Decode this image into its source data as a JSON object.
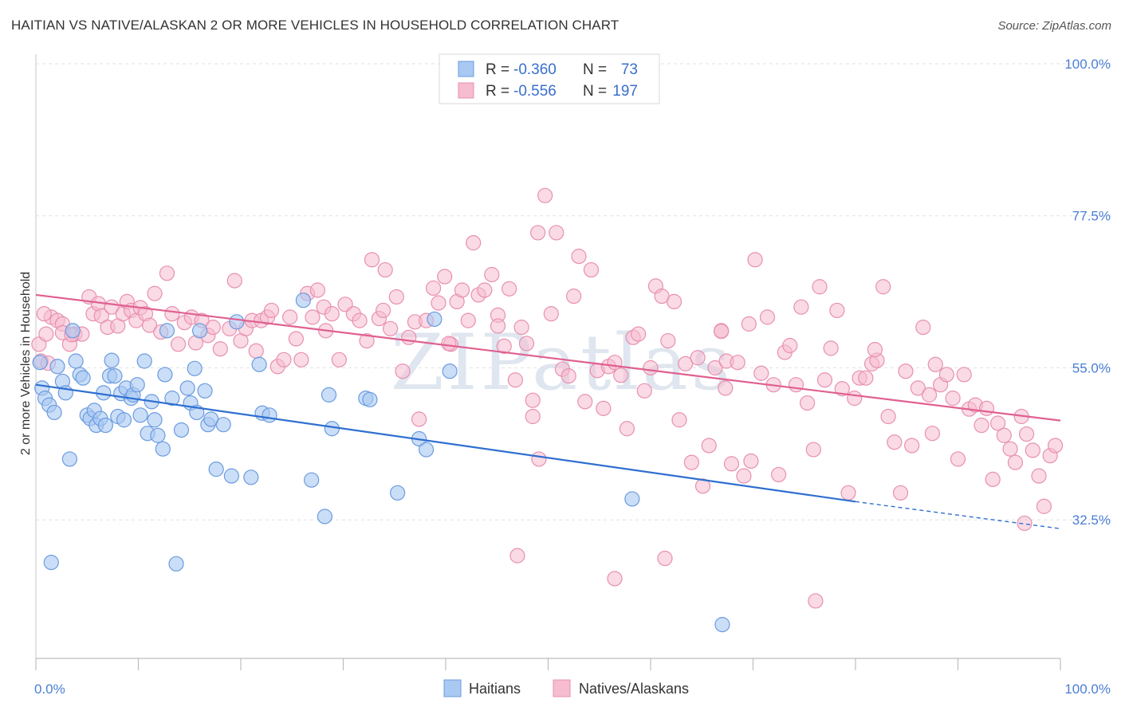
{
  "title": "HAITIAN VS NATIVE/ALASKAN 2 OR MORE VEHICLES IN HOUSEHOLD CORRELATION CHART",
  "source": "Source: ZipAtlas.com",
  "watermark": "ZIPatlas",
  "colors": {
    "blue_fill": "#a9c8f2",
    "blue_stroke": "#6a9be0",
    "blue_line": "#2f6fd0",
    "pink_fill": "#f6bcd0",
    "pink_stroke": "#e890b0",
    "pink_line": "#e06090",
    "tick_text": "#4a7fd4",
    "grid": "#e2e2e2"
  },
  "legend": {
    "rows": [
      {
        "r_label": "R =",
        "r_value": "-0.360",
        "n_label": "N =",
        "n_value": "73"
      },
      {
        "r_label": "R =",
        "r_value": "-0.556",
        "n_label": "N =",
        "n_value": "197"
      }
    ]
  },
  "chart_data": {
    "type": "scatter",
    "title": "HAITIAN VS NATIVE/ALASKAN 2 OR MORE VEHICLES IN HOUSEHOLD CORRELATION CHART",
    "xlabel": "",
    "ylabel": "2 or more Vehicles in Household",
    "xlim": [
      0,
      100
    ],
    "ylim": [
      12,
      100
    ],
    "x_tick_labels": [
      "0.0%",
      "100.0%"
    ],
    "y_tick_labels": [
      "100.0%",
      "77.5%",
      "55.0%",
      "32.5%"
    ],
    "y_ticks": [
      100,
      77.5,
      55,
      32.5
    ],
    "grid": true,
    "legend_position": "top-center",
    "series": [
      {
        "name": "Haitians",
        "trend": {
          "x0": 0,
          "y0": 52.5,
          "x1": 80,
          "y1": 35.2,
          "dash_to_x": 100,
          "dash_to_y": 31.2
        },
        "points": [
          [
            0.4,
            55.8
          ],
          [
            0.6,
            52
          ],
          [
            0.9,
            50.5
          ],
          [
            1.3,
            49.5
          ],
          [
            1.8,
            48.4
          ],
          [
            2.1,
            55.2
          ],
          [
            2.6,
            53
          ],
          [
            2.9,
            51.3
          ],
          [
            3.3,
            41.5
          ],
          [
            3.6,
            60.5
          ],
          [
            3.9,
            56
          ],
          [
            4.3,
            54
          ],
          [
            4.6,
            53.5
          ],
          [
            5.0,
            48
          ],
          [
            5.3,
            47.5
          ],
          [
            5.7,
            48.7
          ],
          [
            5.9,
            46.5
          ],
          [
            6.3,
            47.5
          ],
          [
            6.6,
            51.3
          ],
          [
            6.8,
            46.5
          ],
          [
            7.2,
            53.8
          ],
          [
            7.4,
            56.1
          ],
          [
            7.7,
            53.8
          ],
          [
            8.0,
            47.8
          ],
          [
            8.3,
            51.2
          ],
          [
            8.6,
            47.3
          ],
          [
            8.8,
            52
          ],
          [
            9.3,
            50.5
          ],
          [
            9.5,
            51
          ],
          [
            9.9,
            52.5
          ],
          [
            10.2,
            48
          ],
          [
            10.6,
            56
          ],
          [
            10.9,
            45.3
          ],
          [
            11.3,
            50
          ],
          [
            11.6,
            47.3
          ],
          [
            11.9,
            45
          ],
          [
            12.4,
            43
          ],
          [
            12.6,
            54
          ],
          [
            12.8,
            60.5
          ],
          [
            13.3,
            50.5
          ],
          [
            13.7,
            26
          ],
          [
            14.2,
            45.8
          ],
          [
            14.8,
            52
          ],
          [
            15.1,
            49.8
          ],
          [
            15.5,
            54.9
          ],
          [
            15.7,
            48.4
          ],
          [
            16.0,
            60.5
          ],
          [
            16.5,
            51.6
          ],
          [
            16.8,
            46.6
          ],
          [
            17.1,
            47.4
          ],
          [
            17.6,
            40
          ],
          [
            18.3,
            46.6
          ],
          [
            19.1,
            39
          ],
          [
            19.6,
            61.8
          ],
          [
            21.0,
            38.8
          ],
          [
            21.8,
            55.5
          ],
          [
            22.1,
            48.3
          ],
          [
            22.8,
            48
          ],
          [
            26.1,
            65
          ],
          [
            26.9,
            38.4
          ],
          [
            28.2,
            33
          ],
          [
            28.6,
            51
          ],
          [
            28.9,
            46
          ],
          [
            32.2,
            50.5
          ],
          [
            32.6,
            50.3
          ],
          [
            35.3,
            36.5
          ],
          [
            37.4,
            44.5
          ],
          [
            38.1,
            42.9
          ],
          [
            38.9,
            62.2
          ],
          [
            40.4,
            54.5
          ],
          [
            58.2,
            35.6
          ],
          [
            67.0,
            17
          ],
          [
            1.5,
            26.2
          ]
        ]
      },
      {
        "name": "Natives/Alaskans",
        "trend": {
          "x0": 0,
          "y0": 65.8,
          "x1": 100,
          "y1": 47.2
        },
        "points": [
          [
            0.3,
            58.5
          ],
          [
            0.5,
            56
          ],
          [
            1.0,
            60
          ],
          [
            1.5,
            62.5
          ],
          [
            2.1,
            62
          ],
          [
            2.6,
            61.5
          ],
          [
            3.3,
            58.5
          ],
          [
            3.8,
            60
          ],
          [
            4.5,
            60
          ],
          [
            5.2,
            65.5
          ],
          [
            5.6,
            63
          ],
          [
            6.1,
            64.5
          ],
          [
            6.4,
            62.7
          ],
          [
            7.0,
            61
          ],
          [
            7.4,
            64
          ],
          [
            8.0,
            61.2
          ],
          [
            8.5,
            63
          ],
          [
            8.9,
            64.8
          ],
          [
            9.3,
            63.5
          ],
          [
            9.8,
            62
          ],
          [
            10.2,
            63.9
          ],
          [
            10.7,
            63
          ],
          [
            11.1,
            61.3
          ],
          [
            11.6,
            66
          ],
          [
            12.2,
            60.3
          ],
          [
            12.8,
            69
          ],
          [
            13.3,
            63
          ],
          [
            13.9,
            58.5
          ],
          [
            14.5,
            61.7
          ],
          [
            15.2,
            62.5
          ],
          [
            15.6,
            58.7
          ],
          [
            16.2,
            62
          ],
          [
            16.8,
            59.8
          ],
          [
            17.3,
            61
          ],
          [
            18.0,
            57.8
          ],
          [
            18.9,
            60.8
          ],
          [
            19.4,
            67.9
          ],
          [
            20.0,
            59
          ],
          [
            20.5,
            60.8
          ],
          [
            21.1,
            62
          ],
          [
            21.5,
            57.5
          ],
          [
            22.0,
            62
          ],
          [
            22.6,
            62.5
          ],
          [
            23.0,
            63.5
          ],
          [
            23.6,
            55.2
          ],
          [
            24.2,
            56.2
          ],
          [
            24.8,
            62.5
          ],
          [
            25.4,
            59.3
          ],
          [
            25.9,
            56.2
          ],
          [
            26.5,
            66
          ],
          [
            27.0,
            62.5
          ],
          [
            27.5,
            66.5
          ],
          [
            28.1,
            64
          ],
          [
            28.9,
            63
          ],
          [
            29.6,
            56.2
          ],
          [
            30.2,
            64.4
          ],
          [
            31.0,
            63
          ],
          [
            31.6,
            62
          ],
          [
            32.3,
            59
          ],
          [
            32.8,
            71
          ],
          [
            33.5,
            62.3
          ],
          [
            34.1,
            69.5
          ],
          [
            34.6,
            60.8
          ],
          [
            35.2,
            65.5
          ],
          [
            35.8,
            54.5
          ],
          [
            36.4,
            59.5
          ],
          [
            37.0,
            61.8
          ],
          [
            37.4,
            47.4
          ],
          [
            38.1,
            62
          ],
          [
            38.8,
            66.8
          ],
          [
            39.3,
            64.6
          ],
          [
            39.9,
            68.5
          ],
          [
            40.5,
            58.5
          ],
          [
            41.1,
            64.8
          ],
          [
            41.6,
            66.5
          ],
          [
            42.2,
            62
          ],
          [
            42.7,
            73.5
          ],
          [
            43.2,
            65.8
          ],
          [
            43.8,
            66.5
          ],
          [
            44.5,
            68.8
          ],
          [
            45.1,
            62.8
          ],
          [
            45.7,
            58.2
          ],
          [
            46.2,
            66.7
          ],
          [
            46.8,
            53.2
          ],
          [
            47.4,
            61
          ],
          [
            47.9,
            58.6
          ],
          [
            48.5,
            50.2
          ],
          [
            49.1,
            41.5
          ],
          [
            49.7,
            80.5
          ],
          [
            50.3,
            63
          ],
          [
            50.8,
            75
          ],
          [
            51.4,
            54.8
          ],
          [
            52.0,
            53.8
          ],
          [
            52.5,
            65.6
          ],
          [
            53.0,
            71.5
          ],
          [
            53.6,
            50
          ],
          [
            54.2,
            69.5
          ],
          [
            54.8,
            54.6
          ],
          [
            55.4,
            49
          ],
          [
            55.9,
            55.2
          ],
          [
            56.5,
            55.8
          ],
          [
            57.1,
            53.9
          ],
          [
            57.7,
            46
          ],
          [
            58.3,
            59.5
          ],
          [
            58.8,
            60
          ],
          [
            59.4,
            51.6
          ],
          [
            60.0,
            55
          ],
          [
            60.5,
            67.1
          ],
          [
            61.1,
            65.6
          ],
          [
            61.7,
            59
          ],
          [
            62.3,
            64.8
          ],
          [
            62.8,
            47.3
          ],
          [
            63.4,
            55.6
          ],
          [
            64.0,
            41
          ],
          [
            64.6,
            56.5
          ],
          [
            65.1,
            37.5
          ],
          [
            65.7,
            43.5
          ],
          [
            66.3,
            55
          ],
          [
            66.9,
            60.5
          ],
          [
            67.4,
            56
          ],
          [
            67.9,
            40.8
          ],
          [
            68.5,
            55.8
          ],
          [
            69.1,
            39
          ],
          [
            69.6,
            61.5
          ],
          [
            70.2,
            71
          ],
          [
            70.8,
            54.2
          ],
          [
            71.4,
            62.5
          ],
          [
            72.0,
            52.5
          ],
          [
            72.5,
            39.2
          ],
          [
            73.1,
            57.3
          ],
          [
            73.6,
            58.3
          ],
          [
            74.2,
            52.5
          ],
          [
            74.7,
            64
          ],
          [
            75.3,
            49.8
          ],
          [
            75.9,
            42.9
          ],
          [
            76.5,
            67
          ],
          [
            77.0,
            53.2
          ],
          [
            77.6,
            57.9
          ],
          [
            78.2,
            63.5
          ],
          [
            78.7,
            51.9
          ],
          [
            79.3,
            36.5
          ],
          [
            79.9,
            50.5
          ],
          [
            80.4,
            53.5
          ],
          [
            81.0,
            53.5
          ],
          [
            81.6,
            55.6
          ],
          [
            82.1,
            56.1
          ],
          [
            82.7,
            67
          ],
          [
            83.2,
            47.8
          ],
          [
            83.8,
            44
          ],
          [
            84.4,
            36.5
          ],
          [
            84.9,
            54.5
          ],
          [
            85.5,
            43.5
          ],
          [
            86.1,
            52
          ],
          [
            86.6,
            61
          ],
          [
            87.2,
            51
          ],
          [
            87.8,
            55.5
          ],
          [
            88.3,
            52.5
          ],
          [
            88.9,
            54
          ],
          [
            89.5,
            50.5
          ],
          [
            90.0,
            41.5
          ],
          [
            90.6,
            54
          ],
          [
            91.1,
            48.9
          ],
          [
            91.7,
            49.5
          ],
          [
            92.3,
            46.5
          ],
          [
            92.8,
            49
          ],
          [
            93.4,
            38.5
          ],
          [
            93.9,
            46.8
          ],
          [
            94.5,
            45
          ],
          [
            95.1,
            43
          ],
          [
            95.6,
            41
          ],
          [
            96.2,
            47.8
          ],
          [
            96.7,
            45.2
          ],
          [
            97.3,
            42.8
          ],
          [
            97.9,
            39
          ],
          [
            98.4,
            34.5
          ],
          [
            99.0,
            42
          ],
          [
            99.5,
            43.5
          ],
          [
            47.0,
            27.2
          ],
          [
            56.5,
            23.8
          ],
          [
            61.4,
            26.8
          ],
          [
            76.1,
            20.5
          ],
          [
            96.5,
            32
          ],
          [
            49.0,
            75
          ],
          [
            87.5,
            45.3
          ],
          [
            69.8,
            41.2
          ],
          [
            45.1,
            61.2
          ],
          [
            67.3,
            52
          ],
          [
            28.3,
            60.5
          ],
          [
            33.9,
            63.5
          ],
          [
            40.3,
            58.6
          ],
          [
            66.9,
            60.4
          ],
          [
            48.5,
            47.8
          ],
          [
            0.8,
            63
          ],
          [
            1.2,
            55.7
          ],
          [
            2.6,
            60.2
          ],
          [
            3.5,
            59.9
          ],
          [
            81.9,
            57.7
          ]
        ]
      }
    ]
  },
  "bottom_legend": [
    "Haitians",
    "Natives/Alaskans"
  ]
}
